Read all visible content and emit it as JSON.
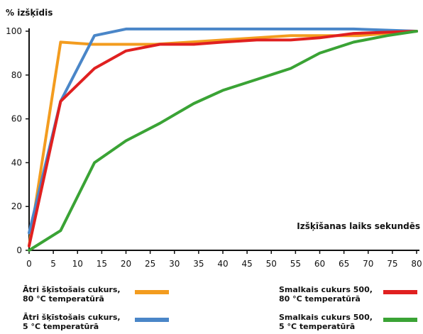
{
  "chart_data": {
    "type": "line",
    "ylabel": "% izšķīdis",
    "xlabel": "Izšķīšanas laiks sekundēs",
    "x_ticks": [
      0,
      5,
      10,
      15,
      20,
      25,
      30,
      35,
      40,
      45,
      50,
      55,
      60,
      65,
      70,
      75,
      80
    ],
    "y_ticks": [
      0,
      20,
      40,
      60,
      80,
      100
    ],
    "xlim": [
      0,
      80
    ],
    "ylim": [
      0,
      100
    ],
    "grid": false,
    "legend_position": "bottom",
    "series": [
      {
        "name": "Ātri šķīstošais cukurs,\n80 °C temperatūrā",
        "color": "#f39c1f",
        "x": [
          0,
          6.5,
          13,
          20,
          26,
          54,
          68,
          80
        ],
        "y": [
          2,
          95,
          94,
          94,
          94,
          98,
          98,
          100
        ]
      },
      {
        "name": "Ātri šķīstošais cukurs,\n5 °C temperatūrā",
        "color": "#4a86c8",
        "x": [
          0,
          6.5,
          13.5,
          20,
          67,
          80
        ],
        "y": [
          8,
          68,
          98,
          101,
          101,
          100
        ]
      },
      {
        "name": "Smalkais cukurs 500,\n80 °C temperatūrā",
        "color": "#e02020",
        "x": [
          0,
          6.5,
          13.5,
          20,
          27,
          34,
          40,
          47,
          54,
          60,
          67,
          80
        ],
        "y": [
          2,
          68,
          83,
          91,
          94,
          94,
          95,
          96,
          96,
          97,
          99,
          100
        ]
      },
      {
        "name": "Smalkais cukurs 500,\n5 °C temperatūrā",
        "color": "#3aa335",
        "x": [
          0,
          6.5,
          13.5,
          20,
          27,
          34,
          40,
          47,
          54,
          60,
          67,
          74,
          80
        ],
        "y": [
          0,
          9,
          40,
          50,
          58,
          67,
          73,
          78,
          83,
          90,
          95,
          98,
          100
        ]
      }
    ]
  }
}
